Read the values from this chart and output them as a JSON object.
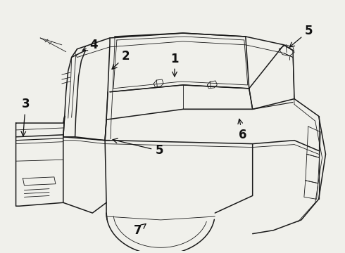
{
  "bg_color": "#f0f0eb",
  "line_color": "#1a1a1a",
  "lw_main": 1.1,
  "lw_thin": 0.6,
  "lw_med": 0.85,
  "label_fontsize": 12,
  "label_fontweight": "bold",
  "label_color": "#111111"
}
